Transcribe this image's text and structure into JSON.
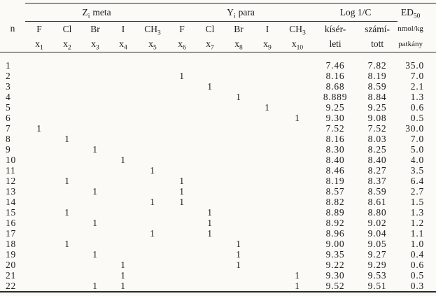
{
  "page": {
    "background": "#fbfaf6",
    "text_color": "#1b1b1b",
    "rule_color": "#2a2a2a"
  },
  "table": {
    "n_label": "n",
    "groups": {
      "z_meta": {
        "main": "Z",
        "sub": "i",
        "tail": "meta"
      },
      "y_para": {
        "main": "Y",
        "sub": "i",
        "tail": "para"
      },
      "log": "Log 1/C",
      "ed": {
        "main": "ED",
        "sub": "50"
      }
    },
    "substituent_columns": [
      {
        "symbol": "F",
        "symbol_sub": "",
        "var": "x",
        "var_sub": "1"
      },
      {
        "symbol": "Cl",
        "symbol_sub": "",
        "var": "x",
        "var_sub": "2"
      },
      {
        "symbol": "Br",
        "symbol_sub": "",
        "var": "x",
        "var_sub": "3"
      },
      {
        "symbol": "I",
        "symbol_sub": "",
        "var": "x",
        "var_sub": "4"
      },
      {
        "symbol": "CH",
        "symbol_sub": "3",
        "var": "x",
        "var_sub": "5"
      },
      {
        "symbol": "F",
        "symbol_sub": "",
        "var": "x",
        "var_sub": "6"
      },
      {
        "symbol": "Cl",
        "symbol_sub": "",
        "var": "x",
        "var_sub": "7"
      },
      {
        "symbol": "Br",
        "symbol_sub": "",
        "var": "x",
        "var_sub": "8"
      },
      {
        "symbol": "I",
        "symbol_sub": "",
        "var": "x",
        "var_sub": "9"
      },
      {
        "symbol": "CH",
        "symbol_sub": "3",
        "var": "x",
        "var_sub": "10"
      }
    ],
    "log_columns": [
      {
        "line1": "kísér-",
        "line2": "leti"
      },
      {
        "line1": "számí-",
        "line2": "tott"
      }
    ],
    "ed_unit": {
      "line1": "nmol/kg",
      "line2": "patkány"
    },
    "rows": [
      {
        "n": "1",
        "ind": [
          "",
          "",
          "",
          "",
          "",
          "",
          "",
          "",
          "",
          ""
        ],
        "kis": "7.46",
        "szam": "7.82",
        "ed": "35.0"
      },
      {
        "n": "2",
        "ind": [
          "",
          "",
          "",
          "",
          "",
          "1",
          "",
          "",
          "",
          ""
        ],
        "kis": "8.16",
        "szam": "8.19",
        "ed": "7.0"
      },
      {
        "n": "3",
        "ind": [
          "",
          "",
          "",
          "",
          "",
          "",
          "1",
          "",
          "",
          ""
        ],
        "kis": "8.68",
        "szam": "8.59",
        "ed": "2.1"
      },
      {
        "n": "4",
        "ind": [
          "",
          "",
          "",
          "",
          "",
          "",
          "",
          "1",
          "",
          ""
        ],
        "kis": "8.889",
        "szam": "8.84",
        "ed": "1.3"
      },
      {
        "n": "5",
        "ind": [
          "",
          "",
          "",
          "",
          "",
          "",
          "",
          "",
          "1",
          ""
        ],
        "kis": "9.25",
        "szam": "9.25",
        "ed": "0.6"
      },
      {
        "n": "6",
        "ind": [
          "",
          "",
          "",
          "",
          "",
          "",
          "",
          "",
          "",
          "1"
        ],
        "kis": "9.30",
        "szam": "9.08",
        "ed": "0.5"
      },
      {
        "n": "7",
        "ind": [
          "1",
          "",
          "",
          "",
          "",
          "",
          "",
          "",
          "",
          ""
        ],
        "kis": "7.52",
        "szam": "7.52",
        "ed": "30.0"
      },
      {
        "n": "8",
        "ind": [
          "",
          "1",
          "",
          "",
          "",
          "",
          "",
          "",
          "",
          ""
        ],
        "kis": "8.16",
        "szam": "8.03",
        "ed": "7.0"
      },
      {
        "n": "9",
        "ind": [
          "",
          "",
          "1",
          "",
          "",
          "",
          "",
          "",
          "",
          ""
        ],
        "kis": "8.30",
        "szam": "8.25",
        "ed": "5.0"
      },
      {
        "n": "10",
        "ind": [
          "",
          "",
          "",
          "1",
          "",
          "",
          "",
          "",
          "",
          ""
        ],
        "kis": "8.40",
        "szam": "8.40",
        "ed": "4.0"
      },
      {
        "n": "11",
        "ind": [
          "",
          "",
          "",
          "",
          "1",
          "",
          "",
          "",
          "",
          ""
        ],
        "kis": "8.46",
        "szam": "8.27",
        "ed": "3.5"
      },
      {
        "n": "12",
        "ind": [
          "",
          "1",
          "",
          "",
          "",
          "1",
          "",
          "",
          "",
          ""
        ],
        "kis": "8.19",
        "szam": "8.37",
        "ed": "6.4"
      },
      {
        "n": "13",
        "ind": [
          "",
          "",
          "1",
          "",
          "",
          "1",
          "",
          "",
          "",
          ""
        ],
        "kis": "8.57",
        "szam": "8.59",
        "ed": "2.7"
      },
      {
        "n": "14",
        "ind": [
          "",
          "",
          "",
          "",
          "1",
          "1",
          "",
          "",
          "",
          ""
        ],
        "kis": "8.82",
        "szam": "8.61",
        "ed": "1.5"
      },
      {
        "n": "15",
        "ind": [
          "",
          "1",
          "",
          "",
          "",
          "",
          "1",
          "",
          "",
          ""
        ],
        "kis": "8.89",
        "szam": "8.80",
        "ed": "1.3"
      },
      {
        "n": "16",
        "ind": [
          "",
          "",
          "1",
          "",
          "",
          "",
          "1",
          "",
          "",
          ""
        ],
        "kis": "8.92",
        "szam": "9.02",
        "ed": "1.2"
      },
      {
        "n": "17",
        "ind": [
          "",
          "",
          "",
          "",
          "1",
          "",
          "1",
          "",
          "",
          ""
        ],
        "kis": "8.96",
        "szam": "9.04",
        "ed": "1.1"
      },
      {
        "n": "18",
        "ind": [
          "",
          "1",
          "",
          "",
          "",
          "",
          "",
          "1",
          "",
          ""
        ],
        "kis": "9.00",
        "szam": "9.05",
        "ed": "1.0"
      },
      {
        "n": "19",
        "ind": [
          "",
          "",
          "1",
          "",
          "",
          "",
          "",
          "1",
          "",
          ""
        ],
        "kis": "9.35",
        "szam": "9.27",
        "ed": "0.4"
      },
      {
        "n": "20",
        "ind": [
          "",
          "",
          "",
          "1",
          "",
          "",
          "",
          "1",
          "",
          ""
        ],
        "kis": "9.22",
        "szam": "9.29",
        "ed": "0.6"
      },
      {
        "n": "21",
        "ind": [
          "",
          "",
          "",
          "1",
          "",
          "",
          "",
          "",
          "",
          "1"
        ],
        "kis": "9.30",
        "szam": "9.53",
        "ed": "0.5"
      },
      {
        "n": "22",
        "ind": [
          "",
          "",
          "1",
          "1",
          "",
          "",
          "",
          "",
          "",
          "1"
        ],
        "kis": "9.52",
        "szam": "9.51",
        "ed": "0.3"
      }
    ]
  }
}
